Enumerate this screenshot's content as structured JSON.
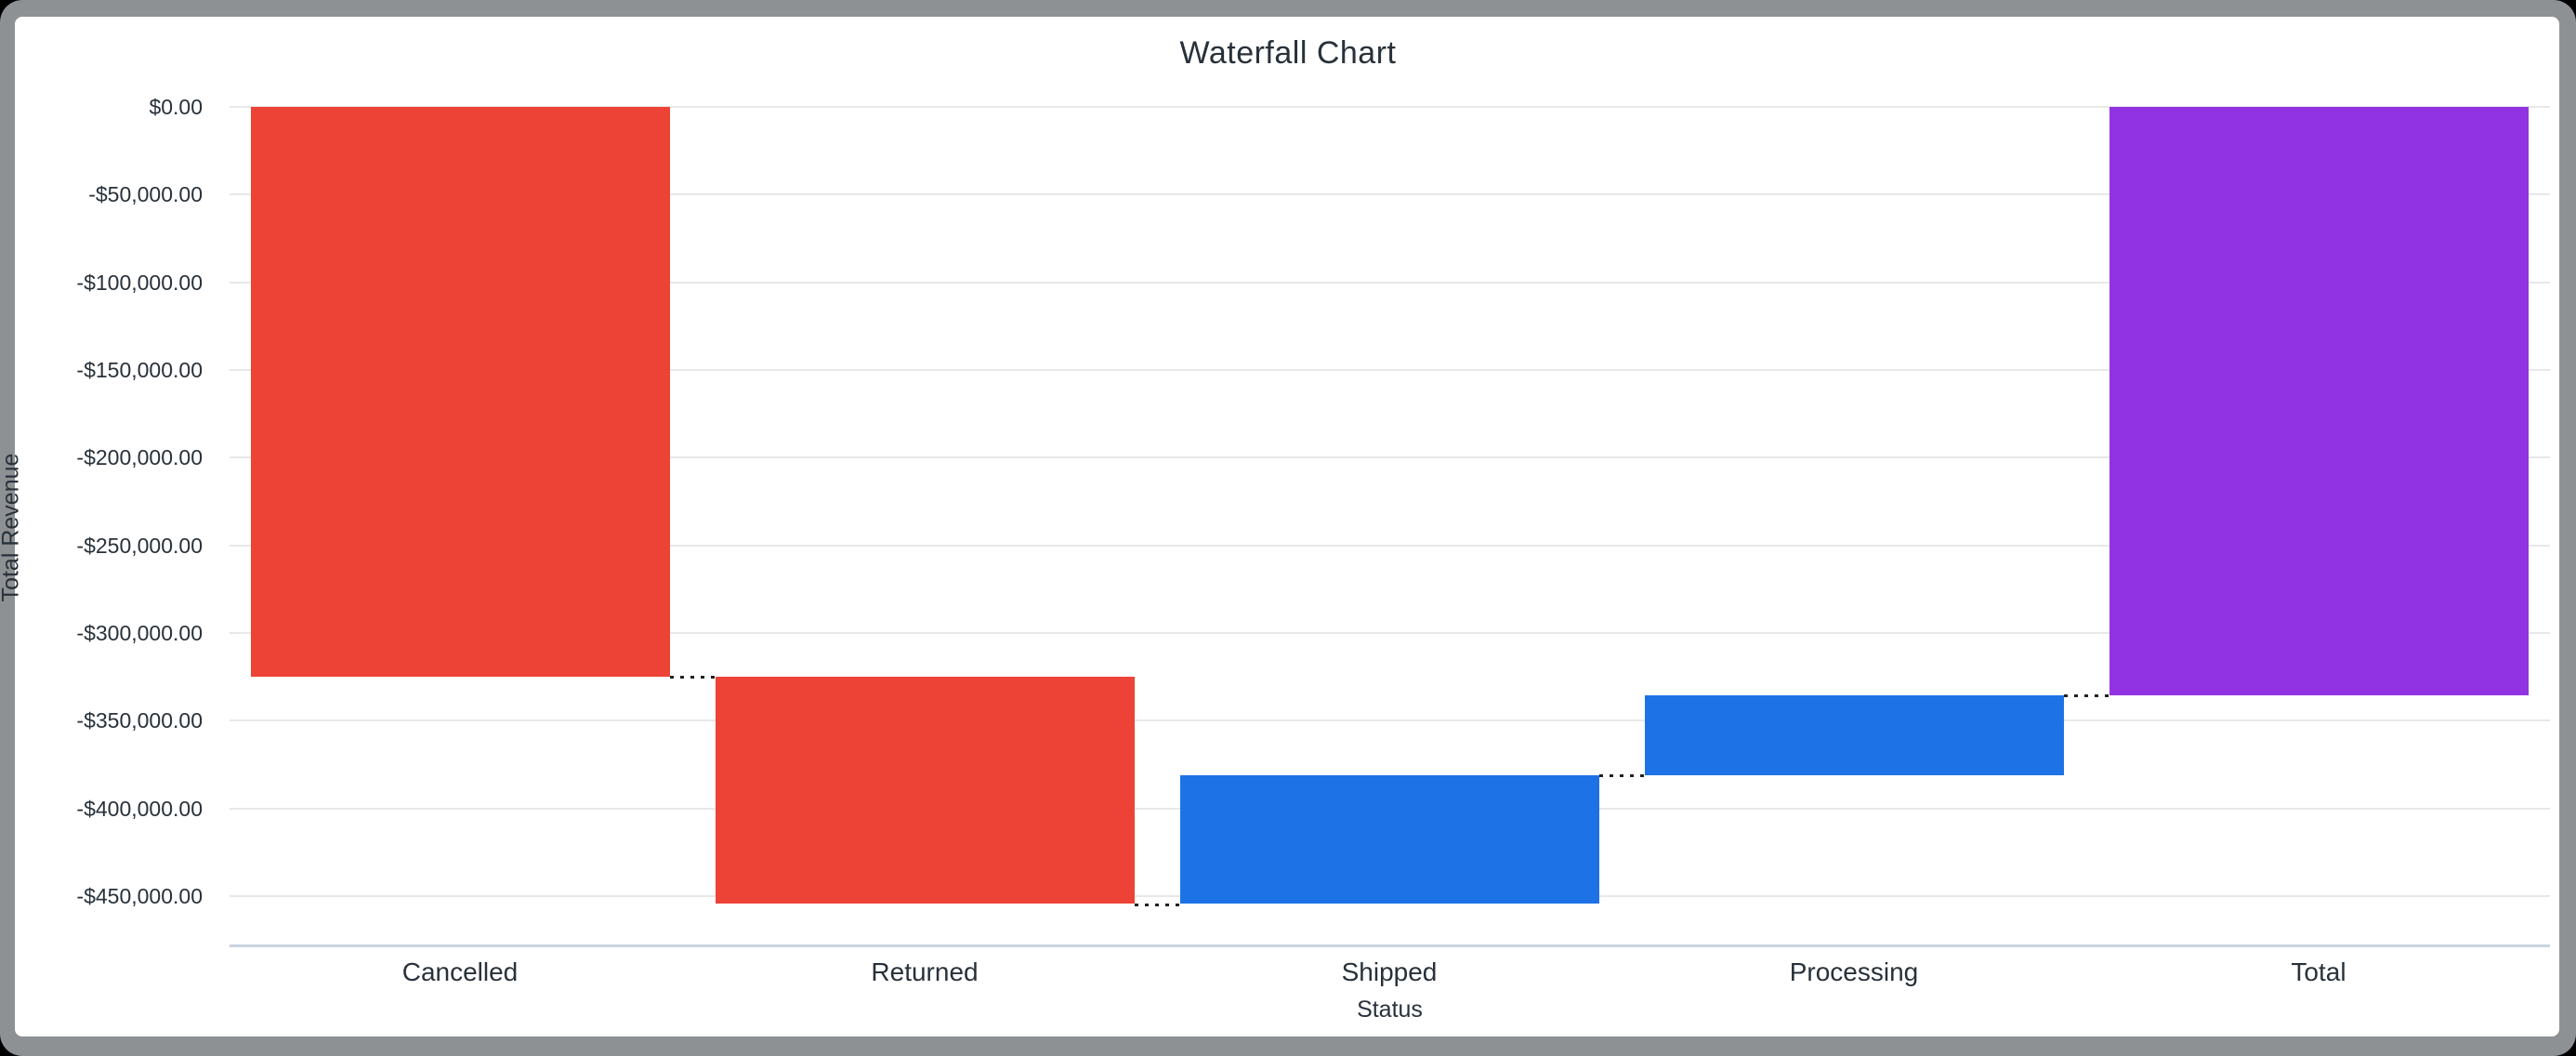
{
  "window": {
    "outer_background": "#000000",
    "frame_border_color": "#8E9194",
    "canvas_color": "#FFFFFF"
  },
  "chart_data": {
    "type": "bar",
    "subtype": "waterfall",
    "title": "Waterfall Chart",
    "xlabel": "Status",
    "ylabel": "Total Revenue",
    "legend": false,
    "grid": true,
    "categories": [
      "Cancelled",
      "Returned",
      "Shipped",
      "Processing",
      "Total"
    ],
    "palette": {
      "decrease": "#ED4337",
      "increase": "#1D73E6",
      "total": "#9233E3",
      "gridline": "#E8E8E8",
      "axis_line": "#CBD4E0",
      "connector": "#222222",
      "text": "#28313A"
    },
    "bars": [
      {
        "label": "Cancelled",
        "type": "decrease",
        "change": -325000,
        "start": 0,
        "end": -325000
      },
      {
        "label": "Returned",
        "type": "decrease",
        "change": -129500,
        "start": -325000,
        "end": -454500
      },
      {
        "label": "Shipped",
        "type": "increase",
        "change": 73500,
        "start": -454500,
        "end": -381000
      },
      {
        "label": "Processing",
        "type": "increase",
        "change": 45500,
        "start": -381000,
        "end": -335500
      },
      {
        "label": "Total",
        "type": "total",
        "change": -335500,
        "start": 0,
        "end": -335500
      }
    ],
    "y_axis": {
      "tick_values": [
        0,
        -50000,
        -100000,
        -150000,
        -200000,
        -250000,
        -300000,
        -350000,
        -400000,
        -450000
      ],
      "tick_labels": [
        "$0.00",
        "-$50,000.00",
        "-$100,000.00",
        "-$150,000.00",
        "-$200,000.00",
        "-$250,000.00",
        "-$300,000.00",
        "-$350,000.00",
        "-$400,000.00",
        "-$450,000.00"
      ],
      "axis_bottom_value": -478000,
      "ylim": [
        -478000,
        0
      ]
    },
    "connectors": [
      {
        "level": -325000,
        "from": "Cancelled",
        "to": "Returned"
      },
      {
        "level": -454500,
        "from": "Returned",
        "to": "Shipped"
      },
      {
        "level": -381000,
        "from": "Shipped",
        "to": "Processing"
      },
      {
        "level": -335500,
        "from": "Processing",
        "to": "Total"
      }
    ]
  }
}
